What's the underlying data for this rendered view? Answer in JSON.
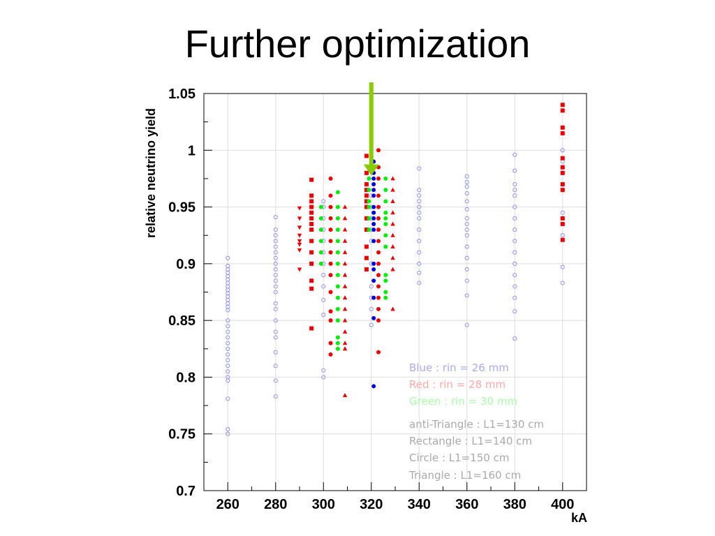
{
  "slide": {
    "title": "Further optimization"
  },
  "chart_data": {
    "type": "scatter",
    "title": "",
    "xlabel": "kA",
    "ylabel": "relative neutrino yield",
    "xlim": [
      250,
      410
    ],
    "ylim": [
      0.7,
      1.05
    ],
    "x_ticks": [
      260,
      280,
      300,
      320,
      340,
      360,
      380,
      400
    ],
    "y_ticks": [
      0.7,
      0.75,
      0.8,
      0.85,
      0.9,
      0.95,
      1,
      1.05
    ],
    "x_tick_labels": [
      "260",
      "280",
      "300",
      "320",
      "340",
      "360",
      "380",
      "400"
    ],
    "y_tick_labels": [
      "0.7",
      "0.75",
      "0.8",
      "0.85",
      "0.9",
      "0.95",
      "1",
      "1.05"
    ],
    "grid": true,
    "colors": {
      "blue": "#0000dd",
      "red": "#ee0000",
      "green": "#00ee00",
      "hollow": "#8888ee",
      "arrow": "#88cc00"
    },
    "annotation": {
      "type": "arrow",
      "x": 320,
      "y": 0.985,
      "color": "#88cc00"
    },
    "legend": {
      "position": "bottom-right",
      "entries": [
        {
          "text": "Blue : rin = 26 mm",
          "color": "#aaaaee"
        },
        {
          "text": "Red : rin = 28 mm",
          "color": "#ffaaaa"
        },
        {
          "text": "Green : rin = 30 mm",
          "color": "#aaffaa"
        },
        {
          "text": "anti-Triangle : L1=130 cm",
          "color": "#aaaaaa"
        },
        {
          "text": "Rectangle : L1=140 cm",
          "color": "#aaaaaa"
        },
        {
          "text": "Circle : L1=150 cm",
          "color": "#aaaaaa"
        },
        {
          "text": "Triangle : L1=160 cm",
          "color": "#aaaaaa"
        }
      ]
    },
    "series": [
      {
        "marker": "hollow-circle",
        "color": "#8888ee",
        "points": [
          [
            260,
            0.905
          ],
          [
            260,
            0.898
          ],
          [
            260,
            0.895
          ],
          [
            260,
            0.892
          ],
          [
            260,
            0.889
          ],
          [
            260,
            0.886
          ],
          [
            260,
            0.883
          ],
          [
            260,
            0.88
          ],
          [
            260,
            0.877
          ],
          [
            260,
            0.874
          ],
          [
            260,
            0.871
          ],
          [
            260,
            0.868
          ],
          [
            260,
            0.865
          ],
          [
            260,
            0.862
          ],
          [
            260,
            0.859
          ],
          [
            260,
            0.85
          ],
          [
            260,
            0.845
          ],
          [
            260,
            0.84
          ],
          [
            260,
            0.835
          ],
          [
            260,
            0.83
          ],
          [
            260,
            0.825
          ],
          [
            260,
            0.82
          ],
          [
            260,
            0.815
          ],
          [
            260,
            0.81
          ],
          [
            260,
            0.805
          ],
          [
            260,
            0.8
          ],
          [
            260,
            0.797
          ],
          [
            260,
            0.781
          ],
          [
            260,
            0.754
          ],
          [
            260,
            0.75
          ],
          [
            280,
            0.941
          ],
          [
            280,
            0.93
          ],
          [
            280,
            0.925
          ],
          [
            280,
            0.92
          ],
          [
            280,
            0.915
          ],
          [
            280,
            0.91
          ],
          [
            280,
            0.905
          ],
          [
            280,
            0.9
          ],
          [
            280,
            0.895
          ],
          [
            280,
            0.89
          ],
          [
            280,
            0.885
          ],
          [
            280,
            0.88
          ],
          [
            280,
            0.875
          ],
          [
            280,
            0.865
          ],
          [
            280,
            0.86
          ],
          [
            280,
            0.85
          ],
          [
            280,
            0.84
          ],
          [
            280,
            0.835
          ],
          [
            280,
            0.822
          ],
          [
            280,
            0.81
          ],
          [
            280,
            0.797
          ],
          [
            280,
            0.783
          ],
          [
            300,
            0.955
          ],
          [
            300,
            0.95
          ],
          [
            300,
            0.94
          ],
          [
            300,
            0.93
          ],
          [
            300,
            0.92
          ],
          [
            300,
            0.91
          ],
          [
            300,
            0.9
          ],
          [
            300,
            0.89
          ],
          [
            300,
            0.88
          ],
          [
            300,
            0.868
          ],
          [
            300,
            0.855
          ],
          [
            300,
            0.806
          ],
          [
            300,
            0.8
          ],
          [
            320,
            0.96
          ],
          [
            320,
            0.95
          ],
          [
            320,
            0.94
          ],
          [
            320,
            0.93
          ],
          [
            320,
            0.92
          ],
          [
            320,
            0.9
          ],
          [
            320,
            0.88
          ],
          [
            320,
            0.87
          ],
          [
            320,
            0.86
          ],
          [
            320,
            0.846
          ],
          [
            340,
            0.984
          ],
          [
            340,
            0.965
          ],
          [
            340,
            0.96
          ],
          [
            340,
            0.955
          ],
          [
            340,
            0.95
          ],
          [
            340,
            0.945
          ],
          [
            340,
            0.94
          ],
          [
            340,
            0.93
          ],
          [
            340,
            0.92
          ],
          [
            340,
            0.91
          ],
          [
            340,
            0.9
          ],
          [
            340,
            0.892
          ],
          [
            340,
            0.883
          ],
          [
            360,
            0.977
          ],
          [
            360,
            0.972
          ],
          [
            360,
            0.968
          ],
          [
            360,
            0.962
          ],
          [
            360,
            0.955
          ],
          [
            360,
            0.948
          ],
          [
            360,
            0.94
          ],
          [
            360,
            0.935
          ],
          [
            360,
            0.93
          ],
          [
            360,
            0.925
          ],
          [
            360,
            0.915
          ],
          [
            360,
            0.905
          ],
          [
            360,
            0.895
          ],
          [
            360,
            0.885
          ],
          [
            360,
            0.872
          ],
          [
            360,
            0.846
          ],
          [
            380,
            0.996
          ],
          [
            380,
            0.982
          ],
          [
            380,
            0.97
          ],
          [
            380,
            0.965
          ],
          [
            380,
            0.96
          ],
          [
            380,
            0.95
          ],
          [
            380,
            0.94
          ],
          [
            380,
            0.93
          ],
          [
            380,
            0.92
          ],
          [
            380,
            0.91
          ],
          [
            380,
            0.9
          ],
          [
            380,
            0.89
          ],
          [
            380,
            0.88
          ],
          [
            380,
            0.87
          ],
          [
            380,
            0.858
          ],
          [
            380,
            0.834
          ],
          [
            400,
            1.0
          ],
          [
            400,
            0.99
          ],
          [
            400,
            0.98
          ],
          [
            400,
            0.97
          ],
          [
            400,
            0.965
          ],
          [
            400,
            0.945
          ],
          [
            400,
            0.935
          ],
          [
            400,
            0.925
          ],
          [
            400,
            0.897
          ],
          [
            400,
            0.883
          ]
        ]
      },
      {
        "marker": "square",
        "color": "#ee0000",
        "points": [
          [
            295,
            0.974
          ],
          [
            295,
            0.96
          ],
          [
            295,
            0.955
          ],
          [
            295,
            0.95
          ],
          [
            295,
            0.945
          ],
          [
            295,
            0.94
          ],
          [
            295,
            0.935
          ],
          [
            295,
            0.93
          ],
          [
            295,
            0.92
          ],
          [
            295,
            0.91
          ],
          [
            295,
            0.9
          ],
          [
            295,
            0.885
          ],
          [
            295,
            0.878
          ],
          [
            295,
            0.843
          ],
          [
            318,
            0.995
          ],
          [
            318,
            0.98
          ],
          [
            318,
            0.97
          ],
          [
            318,
            0.965
          ],
          [
            318,
            0.96
          ],
          [
            318,
            0.955
          ],
          [
            318,
            0.95
          ],
          [
            318,
            0.94
          ],
          [
            318,
            0.93
          ],
          [
            318,
            0.915
          ],
          [
            318,
            0.905
          ],
          [
            318,
            0.895
          ],
          [
            400,
            1.04
          ],
          [
            400,
            1.035
          ],
          [
            400,
            1.02
          ],
          [
            400,
            1.015
          ],
          [
            400,
            0.993
          ],
          [
            400,
            0.985
          ],
          [
            400,
            0.98
          ],
          [
            400,
            0.97
          ],
          [
            400,
            0.965
          ],
          [
            400,
            0.94
          ],
          [
            400,
            0.935
          ],
          [
            400,
            0.921
          ]
        ]
      },
      {
        "marker": "anti-triangle",
        "color": "#ee0000",
        "points": [
          [
            290,
            0.949
          ],
          [
            290,
            0.94
          ],
          [
            290,
            0.932
          ],
          [
            290,
            0.925
          ],
          [
            290,
            0.92
          ],
          [
            290,
            0.917
          ],
          [
            290,
            0.912
          ],
          [
            290,
            0.895
          ]
        ]
      },
      {
        "marker": "circle",
        "color": "#ee0000",
        "points": [
          [
            303,
            0.975
          ],
          [
            303,
            0.96
          ],
          [
            303,
            0.95
          ],
          [
            303,
            0.94
          ],
          [
            303,
            0.93
          ],
          [
            303,
            0.92
          ],
          [
            303,
            0.91
          ],
          [
            303,
            0.9
          ],
          [
            303,
            0.89
          ],
          [
            303,
            0.875
          ],
          [
            303,
            0.858
          ],
          [
            303,
            0.85
          ],
          [
            303,
            0.83
          ],
          [
            303,
            0.82
          ],
          [
            323,
            1.0
          ],
          [
            323,
            0.985
          ],
          [
            323,
            0.975
          ],
          [
            323,
            0.96
          ],
          [
            323,
            0.95
          ],
          [
            323,
            0.94
          ],
          [
            323,
            0.93
          ],
          [
            323,
            0.92
          ],
          [
            323,
            0.91
          ],
          [
            323,
            0.9
          ],
          [
            323,
            0.89
          ],
          [
            323,
            0.88
          ],
          [
            323,
            0.87
          ],
          [
            323,
            0.86
          ],
          [
            323,
            0.85
          ],
          [
            323,
            0.822
          ]
        ]
      },
      {
        "marker": "triangle",
        "color": "#ee0000",
        "points": [
          [
            309,
            0.95
          ],
          [
            309,
            0.94
          ],
          [
            309,
            0.93
          ],
          [
            309,
            0.92
          ],
          [
            309,
            0.91
          ],
          [
            309,
            0.9
          ],
          [
            309,
            0.89
          ],
          [
            309,
            0.88
          ],
          [
            309,
            0.87
          ],
          [
            309,
            0.86
          ],
          [
            309,
            0.85
          ],
          [
            309,
            0.84
          ],
          [
            309,
            0.83
          ],
          [
            309,
            0.825
          ],
          [
            309,
            0.784
          ],
          [
            329,
            0.975
          ],
          [
            329,
            0.965
          ],
          [
            329,
            0.955
          ],
          [
            329,
            0.945
          ],
          [
            329,
            0.935
          ],
          [
            329,
            0.925
          ],
          [
            329,
            0.915
          ],
          [
            329,
            0.905
          ],
          [
            329,
            0.895
          ],
          [
            329,
            0.86
          ]
        ]
      },
      {
        "marker": "circle",
        "color": "#00ee00",
        "points": [
          [
            299,
            0.95
          ],
          [
            299,
            0.94
          ],
          [
            299,
            0.93
          ],
          [
            299,
            0.92
          ],
          [
            299,
            0.91
          ],
          [
            299,
            0.9
          ],
          [
            306,
            0.963
          ],
          [
            306,
            0.95
          ],
          [
            306,
            0.94
          ],
          [
            306,
            0.93
          ],
          [
            306,
            0.92
          ],
          [
            306,
            0.91
          ],
          [
            306,
            0.9
          ],
          [
            306,
            0.89
          ],
          [
            306,
            0.88
          ],
          [
            306,
            0.87
          ],
          [
            306,
            0.86
          ],
          [
            306,
            0.85
          ],
          [
            306,
            0.835
          ],
          [
            306,
            0.83
          ],
          [
            306,
            0.825
          ],
          [
            319,
            0.975
          ],
          [
            319,
            0.965
          ],
          [
            319,
            0.955
          ],
          [
            319,
            0.95
          ],
          [
            319,
            0.94
          ],
          [
            319,
            0.93
          ],
          [
            326,
            0.975
          ],
          [
            326,
            0.965
          ],
          [
            326,
            0.955
          ],
          [
            326,
            0.945
          ],
          [
            326,
            0.94
          ],
          [
            326,
            0.935
          ],
          [
            326,
            0.925
          ],
          [
            326,
            0.915
          ],
          [
            326,
            0.89
          ],
          [
            326,
            0.885
          ],
          [
            326,
            0.875
          ],
          [
            326,
            0.87
          ]
        ]
      },
      {
        "marker": "circle",
        "color": "#0000dd",
        "points": [
          [
            321,
            0.99
          ],
          [
            321,
            0.98
          ],
          [
            321,
            0.975
          ],
          [
            321,
            0.97
          ],
          [
            321,
            0.965
          ],
          [
            321,
            0.96
          ],
          [
            321,
            0.95
          ],
          [
            321,
            0.945
          ],
          [
            321,
            0.94
          ],
          [
            321,
            0.935
          ],
          [
            321,
            0.93
          ],
          [
            321,
            0.92
          ],
          [
            321,
            0.9
          ],
          [
            321,
            0.895
          ],
          [
            321,
            0.885
          ],
          [
            321,
            0.87
          ],
          [
            321,
            0.852
          ],
          [
            321,
            0.792
          ]
        ]
      }
    ]
  }
}
